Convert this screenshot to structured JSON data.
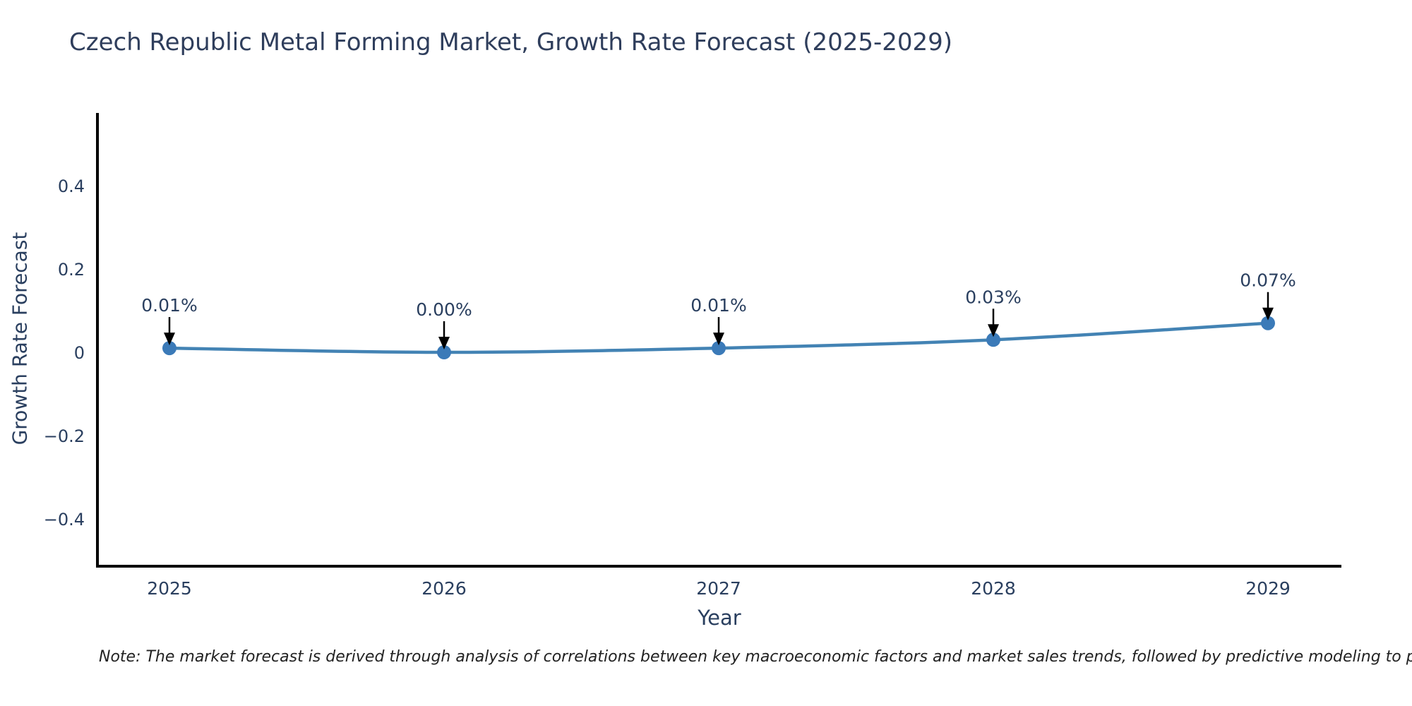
{
  "page": {
    "title": "Czech Republic Metal Forming Market, Growth Rate Forecast (2025-2029)",
    "note": "Note: The market forecast is derived through analysis of correlations between key macroeconomic factors and market sales trends, followed by predictive modeling to project future sa"
  },
  "chart_data": {
    "type": "line",
    "title": "Czech Republic Metal Forming Market, Growth Rate Forecast (2025-2029)",
    "xlabel": "Year",
    "ylabel": "Growth Rate Forecast",
    "categories": [
      "2025",
      "2026",
      "2027",
      "2028",
      "2029"
    ],
    "values": [
      0.01,
      0.0,
      0.01,
      0.03,
      0.07
    ],
    "point_labels": [
      "0.01%",
      "0.00%",
      "0.01%",
      "0.03%",
      "0.07%"
    ],
    "yticks": [
      {
        "value": -0.4,
        "label": "−0.4"
      },
      {
        "value": -0.2,
        "label": "−0.2"
      },
      {
        "value": 0,
        "label": "0"
      },
      {
        "value": 0.2,
        "label": "0.2"
      },
      {
        "value": 0.4,
        "label": "0.4"
      }
    ],
    "ylim": [
      -0.52,
      0.58
    ],
    "grid": false,
    "legend_position": "none",
    "marker_style": "circle",
    "annotation_arrow": "down",
    "colors": {
      "line": "#4383b4",
      "marker": "#3b7ab8",
      "axis": "#000000",
      "tick_text": "#2a3f5f",
      "annotation_text": "#2a3f5f",
      "annotation_arrow": "#000000",
      "title_text": "#2f3e5c",
      "note_text": "#222222",
      "background": "#ffffff"
    }
  }
}
